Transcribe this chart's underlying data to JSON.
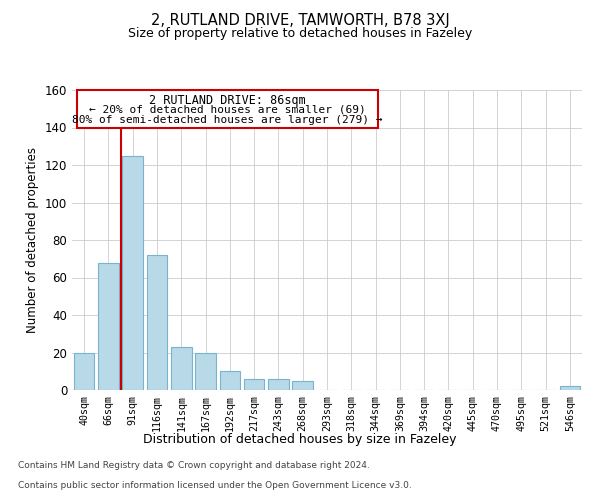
{
  "title1": "2, RUTLAND DRIVE, TAMWORTH, B78 3XJ",
  "title2": "Size of property relative to detached houses in Fazeley",
  "xlabel": "Distribution of detached houses by size in Fazeley",
  "ylabel": "Number of detached properties",
  "bar_labels": [
    "40sqm",
    "66sqm",
    "91sqm",
    "116sqm",
    "141sqm",
    "167sqm",
    "192sqm",
    "217sqm",
    "243sqm",
    "268sqm",
    "293sqm",
    "318sqm",
    "344sqm",
    "369sqm",
    "394sqm",
    "420sqm",
    "445sqm",
    "470sqm",
    "495sqm",
    "521sqm",
    "546sqm"
  ],
  "bar_values": [
    20,
    68,
    125,
    72,
    23,
    20,
    10,
    6,
    6,
    5,
    0,
    0,
    0,
    0,
    0,
    0,
    0,
    0,
    0,
    0,
    2
  ],
  "bar_color": "#b8d9e8",
  "bar_edge_color": "#7ab3cc",
  "ylim": [
    0,
    160
  ],
  "yticks": [
    0,
    20,
    40,
    60,
    80,
    100,
    120,
    140,
    160
  ],
  "vline_color": "#cc0000",
  "annotation_line1": "2 RUTLAND DRIVE: 86sqm",
  "annotation_line2": "← 20% of detached houses are smaller (69)",
  "annotation_line3": "80% of semi-detached houses are larger (279) →",
  "footer_line1": "Contains HM Land Registry data © Crown copyright and database right 2024.",
  "footer_line2": "Contains public sector information licensed under the Open Government Licence v3.0.",
  "background_color": "#ffffff",
  "grid_color": "#cccccc"
}
